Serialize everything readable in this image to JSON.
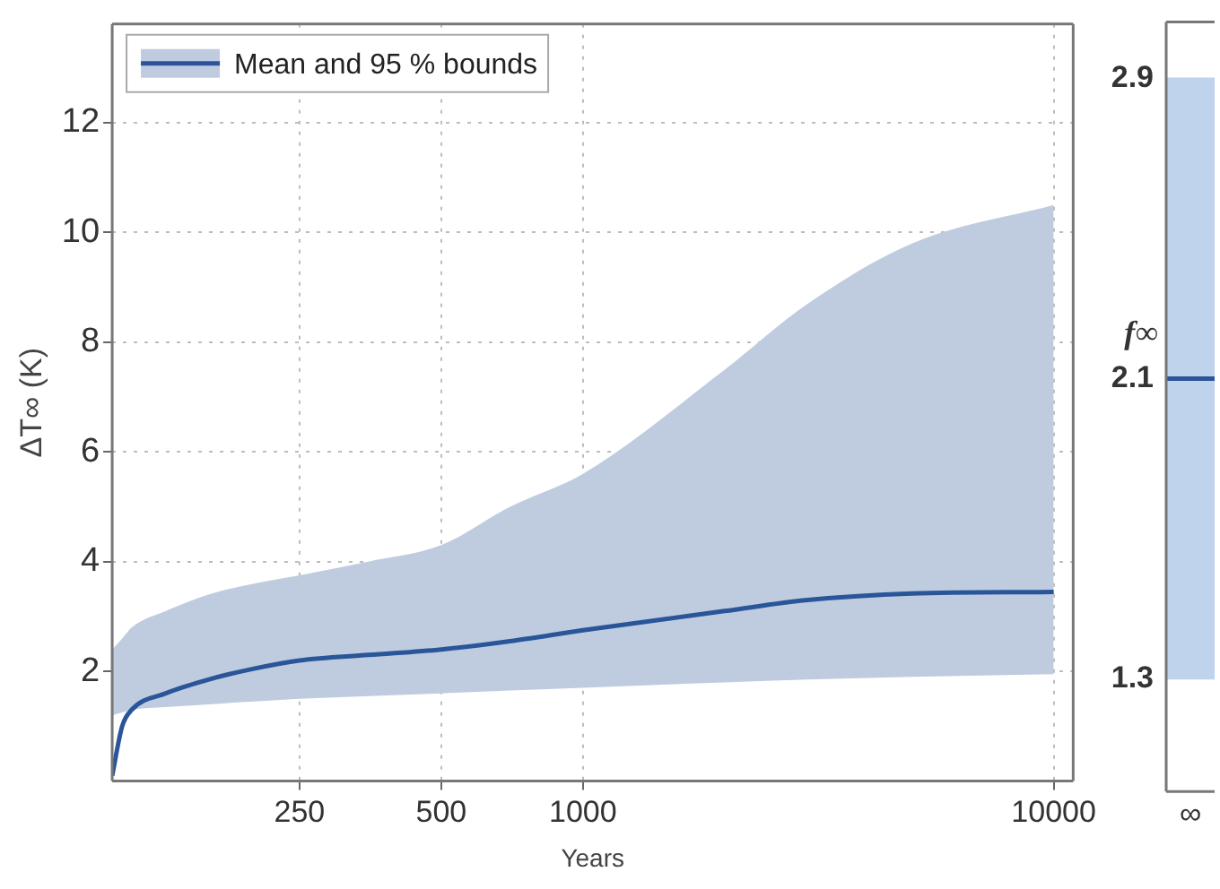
{
  "chart_data": [
    {
      "type": "line",
      "xlabel": "Years",
      "ylabel": "ΔT∞ (K)",
      "log": "x",
      "legend": "top left",
      "grid": true,
      "x": [
        100,
        105,
        110,
        130,
        160,
        200,
        250,
        350,
        500,
        700,
        1000,
        2000,
        3000,
        5000,
        10000
      ],
      "series": [
        {
          "name": "Mean and 95 % bounds",
          "color": "#2a5599",
          "values": [
            0.1,
            1.0,
            1.3,
            1.6,
            1.85,
            2.05,
            2.2,
            2.3,
            2.4,
            2.55,
            2.75,
            3.1,
            3.3,
            3.42,
            3.45
          ],
          "lower": [
            1.2,
            1.25,
            1.3,
            1.35,
            1.4,
            1.45,
            1.5,
            1.55,
            1.6,
            1.65,
            1.7,
            1.8,
            1.85,
            1.9,
            1.95
          ],
          "upper": [
            2.4,
            2.6,
            2.8,
            3.1,
            3.4,
            3.6,
            3.75,
            4.0,
            4.3,
            5.0,
            5.6,
            7.5,
            8.7,
            9.8,
            10.5
          ]
        }
      ],
      "xlim": [
        100,
        11000
      ],
      "xticks": [
        250,
        500,
        1000,
        10000
      ],
      "ylim": [
        0,
        13.8
      ],
      "yticks": [
        2,
        4,
        6,
        8,
        10,
        12
      ]
    },
    {
      "type": "bar",
      "categories": [
        "∞"
      ],
      "ylabel": "f∞",
      "ylim": [
        1.0,
        3.05
      ],
      "yticks": [
        1.3,
        2.1,
        2.9
      ],
      "values": [
        1.6
      ],
      "base": [
        1.3
      ],
      "color": "#bfd3ec",
      "ref_lines": [
        {
          "axis": "y",
          "value": 2.1,
          "color": "#2a5599"
        }
      ]
    }
  ]
}
